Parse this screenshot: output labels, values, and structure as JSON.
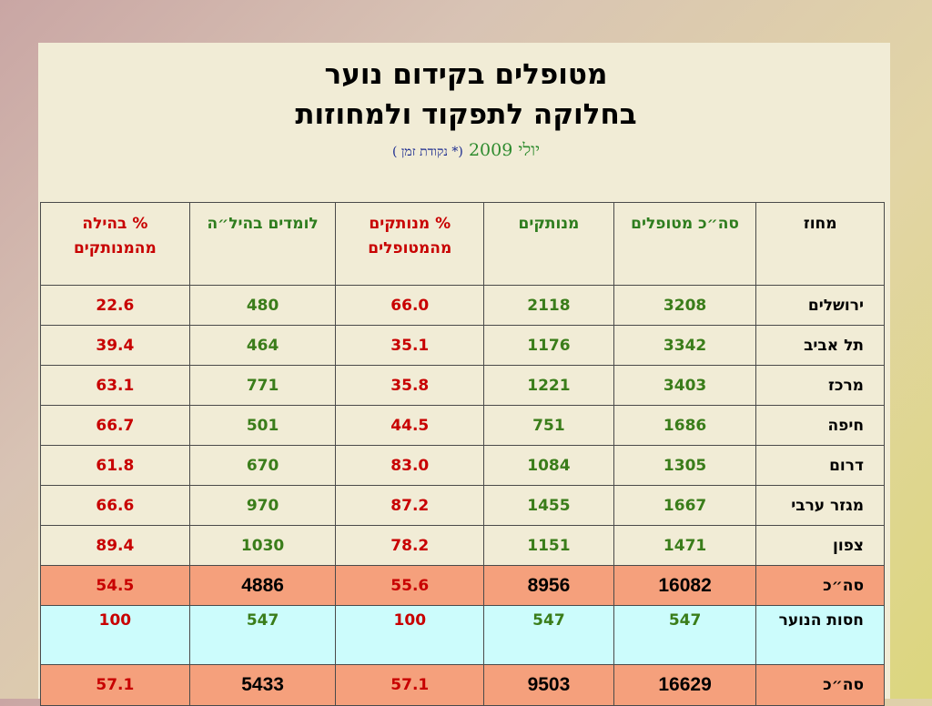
{
  "title": {
    "line1": "מטופלים בקידום נוער",
    "line2": "בחלוקה לתפקוד ולמחוזות",
    "date": "יולי 2009",
    "note": "(* נקודת זמן )"
  },
  "table": {
    "headers": {
      "district": "מחוז",
      "total": "סה״כ מטופלים",
      "dropouts": "מנותקים",
      "pct_dropouts": "% מנותקים מהמטופלים",
      "students": "לומדים בהיל״ה",
      "pct_hila": "% בהילה מהמנותקים"
    },
    "rows": [
      {
        "district": "ירושלים",
        "total": "3208",
        "dropouts": "2118",
        "pct_dropouts": "66.0",
        "students": "480",
        "pct_hila": "22.6"
      },
      {
        "district": "תל אביב",
        "total": "3342",
        "dropouts": "1176",
        "pct_dropouts": "35.1",
        "students": "464",
        "pct_hila": "39.4"
      },
      {
        "district": "מרכז",
        "total": "3403",
        "dropouts": "1221",
        "pct_dropouts": "35.8",
        "students": "771",
        "pct_hila": "63.1"
      },
      {
        "district": "חיפה",
        "total": "1686",
        "dropouts": "751",
        "pct_dropouts": "44.5",
        "students": "501",
        "pct_hila": "66.7"
      },
      {
        "district": "דרום",
        "total": "1305",
        "dropouts": "1084",
        "pct_dropouts": "83.0",
        "students": "670",
        "pct_hila": "61.8"
      },
      {
        "district": "מגזר ערבי",
        "total": "1667",
        "dropouts": "1455",
        "pct_dropouts": "87.2",
        "students": "970",
        "pct_hila": "66.6"
      },
      {
        "district": "צפון",
        "total": "1471",
        "dropouts": "1151",
        "pct_dropouts": "78.2",
        "students": "1030",
        "pct_hila": "89.4"
      }
    ],
    "subtotal": {
      "district": "סה״כ",
      "total": "16082",
      "dropouts": "8956",
      "pct_dropouts": "55.6",
      "students": "4886",
      "pct_hila": "54.5"
    },
    "hasut": {
      "district": "חסות הנוער",
      "total": "547",
      "dropouts": "547",
      "pct_dropouts": "100",
      "students": "547",
      "pct_hila": "100"
    },
    "grand_total": {
      "district": "סה״כ",
      "total": "16629",
      "dropouts": "9503",
      "pct_dropouts": "57.1",
      "students": "5433",
      "pct_hila": "57.1"
    }
  },
  "colors": {
    "total_row_bg": "#f5a07c",
    "hasut_row_bg": "#ccfcfc",
    "green_text": "#3a7d1a",
    "red_text": "#c80000"
  }
}
